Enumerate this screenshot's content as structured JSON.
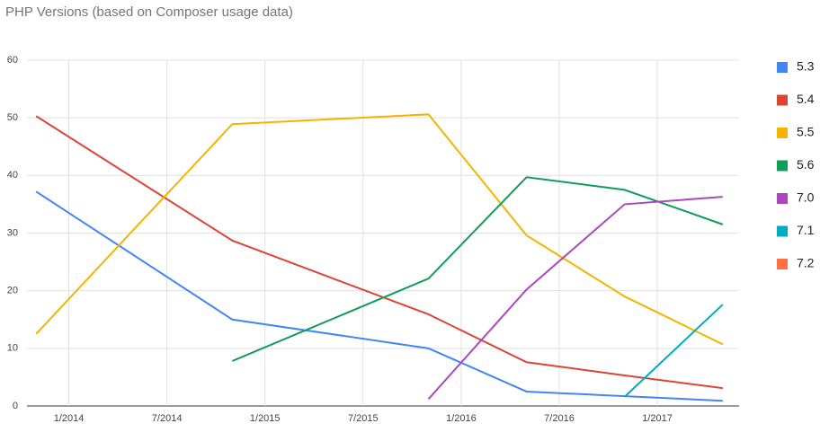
{
  "chart_data": {
    "type": "line",
    "title": "PHP Versions (based on Composer usage data)",
    "x": [
      "11/2013",
      "11/2014",
      "11/2015",
      "5/2016",
      "11/2016",
      "5/2017"
    ],
    "xlim": [
      "10/2013",
      "6/2017"
    ],
    "xticks": [
      "1/2014",
      "7/2014",
      "1/2015",
      "7/2015",
      "1/2016",
      "7/2016",
      "1/2017"
    ],
    "ylim": [
      0,
      60
    ],
    "yticks": [
      0,
      10,
      20,
      30,
      40,
      50,
      60
    ],
    "grid": true,
    "legend": "right",
    "series": [
      {
        "name": "5.3",
        "color": "#4285f4",
        "values": [
          37.2,
          15.0,
          10.0,
          2.5,
          1.7,
          0.9
        ]
      },
      {
        "name": "5.4",
        "color": "#db4437",
        "values": [
          50.3,
          28.7,
          15.9,
          7.6,
          5.3,
          3.1
        ]
      },
      {
        "name": "5.5",
        "color": "#f4b400",
        "values": [
          12.5,
          48.9,
          50.6,
          29.6,
          19.0,
          10.7
        ]
      },
      {
        "name": "5.6",
        "color": "#0f9d58",
        "values": [
          null,
          7.8,
          22.1,
          39.7,
          37.5,
          31.5
        ]
      },
      {
        "name": "7.0",
        "color": "#ab47bc",
        "values": [
          null,
          null,
          1.2,
          20.2,
          35.0,
          36.3
        ]
      },
      {
        "name": "7.1",
        "color": "#00acc1",
        "values": [
          null,
          null,
          null,
          null,
          1.6,
          17.6
        ]
      },
      {
        "name": "7.2",
        "color": "#ff7043",
        "values": [
          null,
          null,
          null,
          null,
          null,
          null
        ]
      }
    ]
  }
}
